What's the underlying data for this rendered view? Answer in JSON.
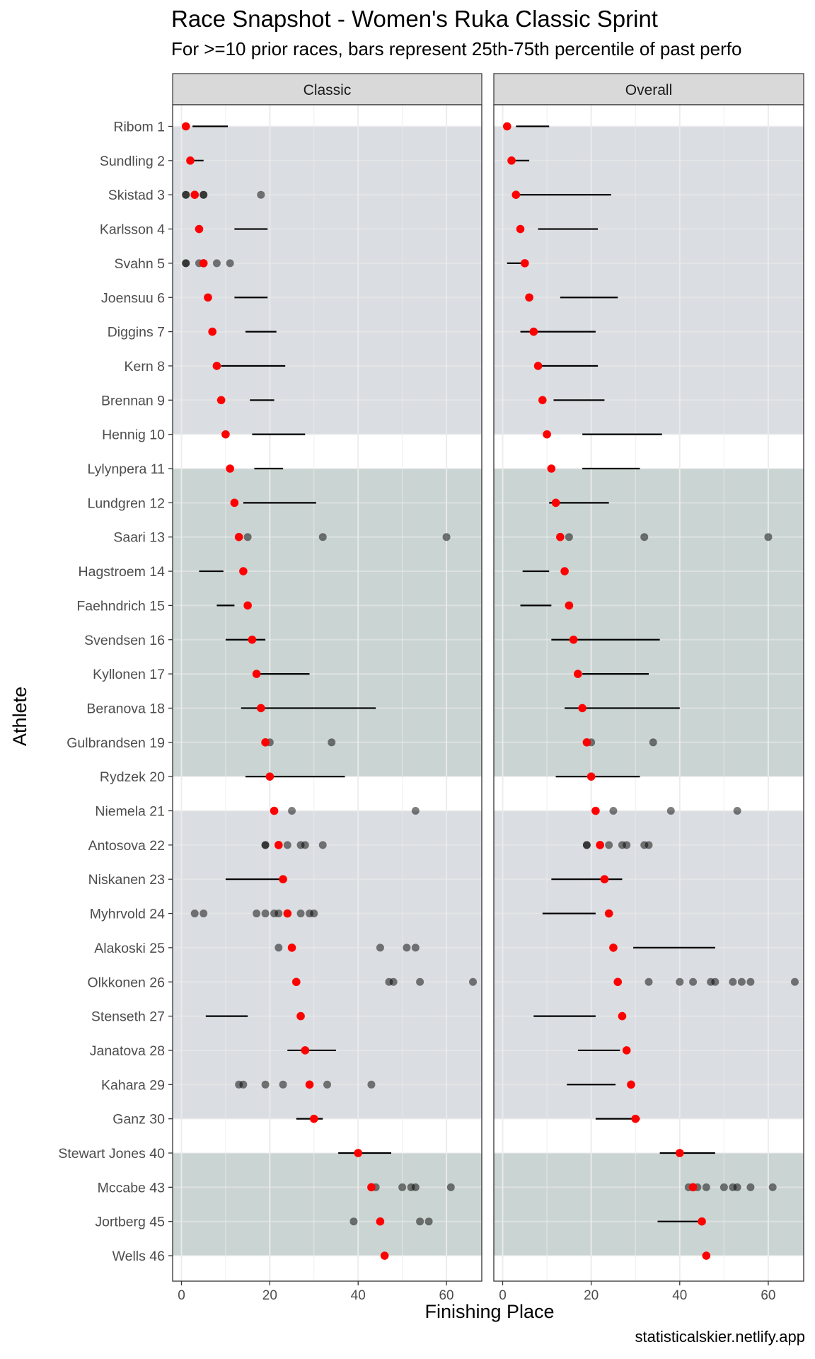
{
  "title": "Race Snapshot -  Women's Ruka Classic Sprint",
  "subtitle": "For >=10 prior races, bars represent 25th-75th percentile of past perfo",
  "caption": "statisticalskier.netlify.app",
  "chart_data": {
    "type": "scatter",
    "xlabel": "Finishing Place",
    "ylabel": "Athlete",
    "xlim": [
      -2,
      68
    ],
    "x_ticks": [
      0,
      20,
      40,
      60
    ],
    "grid": true,
    "colors": {
      "current": "#ff0000",
      "past": "#000000",
      "band_a": "#dadde1",
      "band_b": "#cad4d2",
      "strip": "#d9d9d9"
    },
    "athletes": [
      "Ribom 1",
      "Sundling 2",
      "Skistad 3",
      "Karlsson 4",
      "Svahn 5",
      "Joensuu 6",
      "Diggins 7",
      "Kern 8",
      "Brennan 9",
      "Hennig 10",
      "Lylynpera 11",
      "Lundgren 12",
      "Saari 13",
      "Hagstroem 14",
      "Faehndrich 15",
      "Svendsen 16",
      "Kyllonen 17",
      "Beranova 18",
      "Gulbrandsen 19",
      "Rydzek 20",
      "Niemela 21",
      "Antosova 22",
      "Niskanen 23",
      "Myhrvold 24",
      "Alakoski 25",
      "Olkkonen 26",
      "Stenseth 27",
      "Janatova 28",
      "Kahara 29",
      "Ganz 30",
      "Stewart Jones 40",
      "Mccabe 43",
      "Jortberg 45",
      "Wells 46"
    ],
    "bands": [
      {
        "start": 1,
        "end": 10,
        "color": "band_a"
      },
      {
        "start": 11,
        "end": 20,
        "color": "band_b"
      },
      {
        "start": 21,
        "end": 30,
        "color": "band_a"
      },
      {
        "start": 31,
        "end": 34,
        "color": "band_b"
      }
    ],
    "panels": [
      {
        "name": "Classic",
        "rows": [
          {
            "current": 1,
            "bar": [
              2.5,
              10.5
            ],
            "past": []
          },
          {
            "current": 2,
            "bar": [
              2.5,
              5
            ],
            "past": []
          },
          {
            "current": 3,
            "bar": null,
            "past": [
              1,
              1,
              5,
              5,
              18
            ]
          },
          {
            "current": 4,
            "bar": [
              12,
              19.5
            ],
            "past": []
          },
          {
            "current": 5,
            "bar": null,
            "past": [
              1,
              1,
              4,
              8,
              11
            ]
          },
          {
            "current": 6,
            "bar": [
              12,
              19.5
            ],
            "past": []
          },
          {
            "current": 7,
            "bar": [
              14.5,
              21.5
            ],
            "past": []
          },
          {
            "current": 8,
            "bar": [
              9,
              23.5
            ],
            "past": []
          },
          {
            "current": 9,
            "bar": [
              15.5,
              21
            ],
            "past": []
          },
          {
            "current": 10,
            "bar": [
              16,
              28
            ],
            "past": []
          },
          {
            "current": 11,
            "bar": [
              16.5,
              23
            ],
            "past": []
          },
          {
            "current": 12,
            "bar": [
              14,
              30.5
            ],
            "past": []
          },
          {
            "current": 13,
            "bar": null,
            "past": [
              15,
              32,
              60
            ]
          },
          {
            "current": 14,
            "bar": [
              4,
              9.5
            ],
            "past": []
          },
          {
            "current": 15,
            "bar": [
              8,
              12
            ],
            "past": []
          },
          {
            "current": 16,
            "bar": [
              10,
              19
            ],
            "past": []
          },
          {
            "current": 17,
            "bar": [
              17,
              29
            ],
            "past": []
          },
          {
            "current": 18,
            "bar": [
              13.5,
              44
            ],
            "past": []
          },
          {
            "current": 19,
            "bar": null,
            "past": [
              20,
              34
            ]
          },
          {
            "current": 20,
            "bar": [
              14.5,
              37
            ],
            "past": []
          },
          {
            "current": 21,
            "bar": null,
            "past": [
              25,
              53
            ]
          },
          {
            "current": 22,
            "bar": null,
            "past": [
              19,
              19,
              24,
              27,
              28,
              32
            ]
          },
          {
            "current": 23,
            "bar": [
              10,
              23
            ],
            "past": []
          },
          {
            "current": 24,
            "bar": null,
            "past": [
              3,
              5,
              17,
              19,
              21,
              22,
              27,
              29,
              30
            ]
          },
          {
            "current": 25,
            "bar": null,
            "past": [
              22,
              45,
              51,
              53
            ]
          },
          {
            "current": 26,
            "bar": null,
            "past": [
              47,
              48,
              54,
              66
            ]
          },
          {
            "current": 27,
            "bar": [
              5.5,
              15
            ],
            "past": []
          },
          {
            "current": 28,
            "bar": [
              24,
              35
            ],
            "past": []
          },
          {
            "current": 29,
            "bar": null,
            "past": [
              13,
              14,
              19,
              23,
              33,
              43
            ]
          },
          {
            "current": 30,
            "bar": [
              26,
              32
            ],
            "past": []
          },
          {
            "current": 40,
            "bar": [
              35.5,
              47.5
            ],
            "past": []
          },
          {
            "current": 43,
            "bar": null,
            "past": [
              44,
              50,
              52,
              53,
              61
            ]
          },
          {
            "current": 45,
            "bar": null,
            "past": [
              39,
              54,
              56
            ]
          },
          {
            "current": 46,
            "bar": null,
            "past": []
          }
        ]
      },
      {
        "name": "Overall",
        "rows": [
          {
            "current": 1,
            "bar": [
              3,
              10.5
            ],
            "past": []
          },
          {
            "current": 2,
            "bar": [
              2,
              6
            ],
            "past": []
          },
          {
            "current": 3,
            "bar": [
              2.5,
              24.5
            ],
            "past": []
          },
          {
            "current": 4,
            "bar": [
              8,
              21.5
            ],
            "past": []
          },
          {
            "current": 5,
            "bar": [
              1,
              5
            ],
            "past": []
          },
          {
            "current": 6,
            "bar": [
              13,
              26
            ],
            "past": []
          },
          {
            "current": 7,
            "bar": [
              4,
              21
            ],
            "past": []
          },
          {
            "current": 8,
            "bar": [
              8.5,
              21.5
            ],
            "past": []
          },
          {
            "current": 9,
            "bar": [
              11.5,
              23
            ],
            "past": []
          },
          {
            "current": 10,
            "bar": [
              18,
              36
            ],
            "past": []
          },
          {
            "current": 11,
            "bar": [
              18,
              31
            ],
            "past": []
          },
          {
            "current": 12,
            "bar": [
              10.5,
              24
            ],
            "past": []
          },
          {
            "current": 13,
            "bar": null,
            "past": [
              15,
              32,
              60
            ]
          },
          {
            "current": 14,
            "bar": [
              4.5,
              10.5
            ],
            "past": []
          },
          {
            "current": 15,
            "bar": [
              4,
              11
            ],
            "past": []
          },
          {
            "current": 16,
            "bar": [
              11,
              35.5
            ],
            "past": []
          },
          {
            "current": 17,
            "bar": [
              18,
              33
            ],
            "past": []
          },
          {
            "current": 18,
            "bar": [
              14,
              40
            ],
            "past": []
          },
          {
            "current": 19,
            "bar": null,
            "past": [
              20,
              34
            ]
          },
          {
            "current": 20,
            "bar": [
              12,
              31
            ],
            "past": []
          },
          {
            "current": 21,
            "bar": null,
            "past": [
              25,
              38,
              53
            ]
          },
          {
            "current": 22,
            "bar": null,
            "past": [
              19,
              19,
              24,
              27,
              28,
              32,
              33
            ]
          },
          {
            "current": 23,
            "bar": [
              11,
              27
            ],
            "past": []
          },
          {
            "current": 24,
            "bar": [
              9,
              21
            ],
            "past": []
          },
          {
            "current": 25,
            "bar": [
              29.5,
              48
            ],
            "past": []
          },
          {
            "current": 26,
            "bar": null,
            "past": [
              33,
              40,
              43,
              47,
              48,
              52,
              54,
              56,
              66
            ]
          },
          {
            "current": 27,
            "bar": [
              7,
              21
            ],
            "past": []
          },
          {
            "current": 28,
            "bar": [
              17,
              26.5
            ],
            "past": []
          },
          {
            "current": 29,
            "bar": [
              14.5,
              25.5
            ],
            "past": []
          },
          {
            "current": 30,
            "bar": [
              21,
              31
            ],
            "past": []
          },
          {
            "current": 40,
            "bar": [
              35.5,
              48
            ],
            "past": []
          },
          {
            "current": 43,
            "bar": null,
            "past": [
              42,
              44,
              46,
              50,
              52,
              53,
              56,
              61
            ]
          },
          {
            "current": 45,
            "bar": [
              35,
              45
            ],
            "past": []
          },
          {
            "current": 46,
            "bar": null,
            "past": []
          }
        ]
      }
    ]
  }
}
